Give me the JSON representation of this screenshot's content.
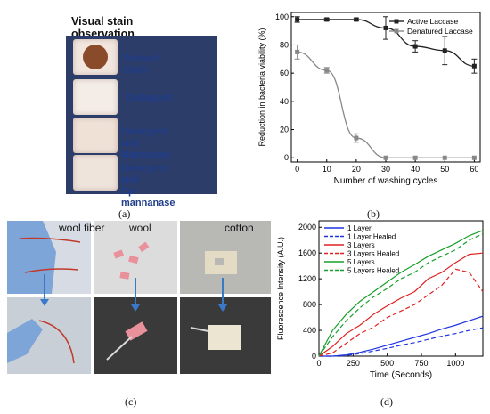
{
  "panel_a": {
    "title": "Visual stain observation",
    "labels": [
      "Stained Cloth",
      "Detergent",
      "Detergent and Mannaway",
      "Detergent and Cp-mannanase"
    ],
    "label_lines": [
      [
        "Stained Cloth"
      ],
      [
        "Detergent"
      ],
      [
        "Detergent and",
        "Mannaway"
      ],
      [
        "Detergent and",
        "Cp-mannanase"
      ]
    ],
    "caption": "(a)"
  },
  "panel_b": {
    "caption": "(b)"
  },
  "panel_c": {
    "labels": [
      "wool fiber",
      "wool",
      "cotton"
    ],
    "caption": "(c)"
  },
  "panel_d": {
    "caption": "(d)"
  },
  "chart_data": [
    {
      "type": "line",
      "xlabel": "Number of washing cycles",
      "ylabel": "Reduction in bacteria viability (%)",
      "xlim": [
        -2,
        62
      ],
      "ylim": [
        -3,
        103
      ],
      "xticks": [
        0,
        10,
        20,
        30,
        40,
        50,
        60
      ],
      "yticks": [
        0,
        20,
        40,
        60,
        80,
        100
      ],
      "legend_position": "top-right",
      "series": [
        {
          "name": "Active Laccase",
          "color": "#222222",
          "marker": "square",
          "x": [
            0,
            10,
            20,
            30,
            40,
            50,
            60
          ],
          "y": [
            98,
            98,
            98,
            92,
            79,
            76,
            65
          ],
          "err": [
            2,
            1,
            1,
            8,
            4,
            10,
            5
          ]
        },
        {
          "name": "Denatured Laccase",
          "color": "#888888",
          "marker": "square",
          "x": [
            0,
            10,
            20,
            30,
            40,
            50,
            60
          ],
          "y": [
            75,
            62,
            14,
            0,
            0,
            0,
            0
          ],
          "err": [
            5,
            2,
            3,
            0,
            0,
            0,
            0
          ]
        }
      ]
    },
    {
      "type": "line",
      "xlabel": "Time (Seconds)",
      "ylabel": "Fluorescence Intensity (A.U.)",
      "xlim": [
        0,
        1200
      ],
      "ylim": [
        0,
        2100
      ],
      "xticks": [
        0,
        250,
        500,
        750,
        1000
      ],
      "yticks": [
        0,
        400,
        800,
        1200,
        1600,
        2000
      ],
      "legend_position": "top-left",
      "series": [
        {
          "name": "1 Layer",
          "color": "#1f33e0",
          "dash": false,
          "x": [
            0,
            100,
            200,
            300,
            400,
            500,
            600,
            700,
            800,
            900,
            1000,
            1100,
            1200
          ],
          "y": [
            0,
            0,
            20,
            60,
            110,
            170,
            230,
            290,
            350,
            420,
            480,
            550,
            620
          ]
        },
        {
          "name": "1 Layer Healed",
          "color": "#1f33e0",
          "dash": true,
          "x": [
            0,
            100,
            200,
            300,
            400,
            500,
            600,
            700,
            800,
            900,
            1000,
            1100,
            1200
          ],
          "y": [
            0,
            0,
            10,
            40,
            80,
            120,
            170,
            210,
            260,
            310,
            350,
            400,
            440
          ]
        },
        {
          "name": "3 Layers",
          "color": "#e02020",
          "dash": false,
          "x": [
            0,
            100,
            200,
            300,
            400,
            500,
            600,
            700,
            800,
            900,
            1000,
            1100,
            1200
          ],
          "y": [
            0,
            150,
            350,
            480,
            650,
            780,
            900,
            1000,
            1200,
            1300,
            1450,
            1580,
            1600
          ]
        },
        {
          "name": "3 Layers Healed",
          "color": "#e02020",
          "dash": true,
          "x": [
            0,
            100,
            200,
            300,
            400,
            500,
            600,
            700,
            800,
            900,
            1000,
            1100,
            1200
          ],
          "y": [
            0,
            50,
            200,
            350,
            450,
            600,
            700,
            800,
            950,
            1100,
            1350,
            1300,
            1000
          ]
        },
        {
          "name": "5 Layers",
          "color": "#16a02a",
          "dash": false,
          "x": [
            0,
            100,
            200,
            300,
            400,
            500,
            600,
            700,
            800,
            900,
            1000,
            1100,
            1200
          ],
          "y": [
            0,
            400,
            650,
            850,
            1000,
            1150,
            1300,
            1420,
            1550,
            1650,
            1750,
            1870,
            1950
          ]
        },
        {
          "name": "5 Layers Healed",
          "color": "#16a02a",
          "dash": true,
          "x": [
            0,
            100,
            200,
            300,
            400,
            500,
            600,
            700,
            800,
            900,
            1000,
            1100,
            1200
          ],
          "y": [
            0,
            300,
            550,
            750,
            920,
            1050,
            1200,
            1300,
            1450,
            1550,
            1650,
            1800,
            1900
          ]
        }
      ]
    }
  ]
}
